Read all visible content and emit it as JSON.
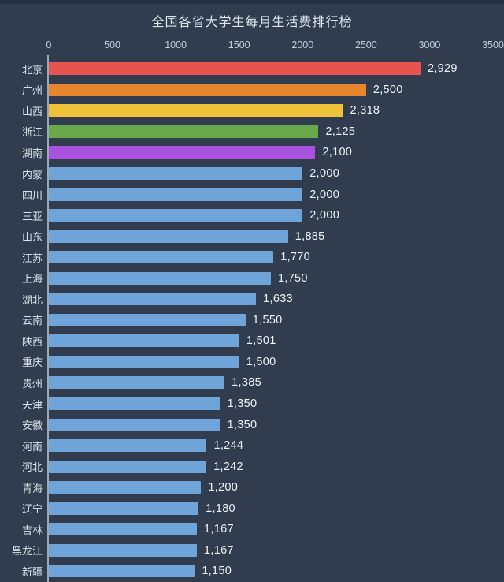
{
  "title": "全国各省大学生每月生活费排行榜",
  "chart_data": {
    "type": "bar",
    "orientation": "horizontal",
    "title": "全国各省大学生每月生活费排行榜",
    "xlabel": "",
    "ylabel": "",
    "xlim": [
      0,
      3500
    ],
    "x_ticks": [
      0,
      500,
      1000,
      1500,
      2000,
      2500,
      3000,
      3500
    ],
    "grid": "off",
    "legend": "none",
    "categories": [
      "北京",
      "广州",
      "山西",
      "浙江",
      "湖南",
      "内蒙",
      "四川",
      "三亚",
      "山东",
      "江苏",
      "上海",
      "湖北",
      "云南",
      "陕西",
      "重庆",
      "贵州",
      "天津",
      "安徽",
      "河南",
      "河北",
      "青海",
      "辽宁",
      "吉林",
      "黑龙江",
      "新疆"
    ],
    "values": [
      2929,
      2500,
      2318,
      2125,
      2100,
      2000,
      2000,
      2000,
      1885,
      1770,
      1750,
      1633,
      1550,
      1501,
      1500,
      1385,
      1350,
      1350,
      1244,
      1242,
      1200,
      1180,
      1167,
      1167,
      1150
    ],
    "value_labels": [
      "2,929",
      "2,500",
      "2,318",
      "2,125",
      "2,100",
      "2,000",
      "2,000",
      "2,000",
      "1,885",
      "1,770",
      "1,750",
      "1,633",
      "1,550",
      "1,501",
      "1,500",
      "1,385",
      "1,350",
      "1,350",
      "1,244",
      "1,242",
      "1,200",
      "1,180",
      "1,167",
      "1,167",
      "1,150"
    ],
    "bar_colors": [
      "#e5544f",
      "#e6862f",
      "#f0c23c",
      "#6aa84c",
      "#aa52e0",
      "#6ea4d8",
      "#6ea4d8",
      "#6ea4d8",
      "#6ea4d8",
      "#6ea4d8",
      "#6ea4d8",
      "#6ea4d8",
      "#6ea4d8",
      "#6ea4d8",
      "#6ea4d8",
      "#6ea4d8",
      "#6ea4d8",
      "#6ea4d8",
      "#6ea4d8",
      "#6ea4d8",
      "#6ea4d8",
      "#6ea4d8",
      "#6ea4d8",
      "#6ea4d8",
      "#6ea4d8"
    ]
  },
  "colors": {
    "background": "#313d4f",
    "top_edge": "#242f40",
    "title_text": "#dde4ec",
    "tick_text": "#c6cdd7",
    "label_text": "#dce2ea",
    "value_text": "#eff2f6",
    "axis_line": "#cdd6e1"
  }
}
